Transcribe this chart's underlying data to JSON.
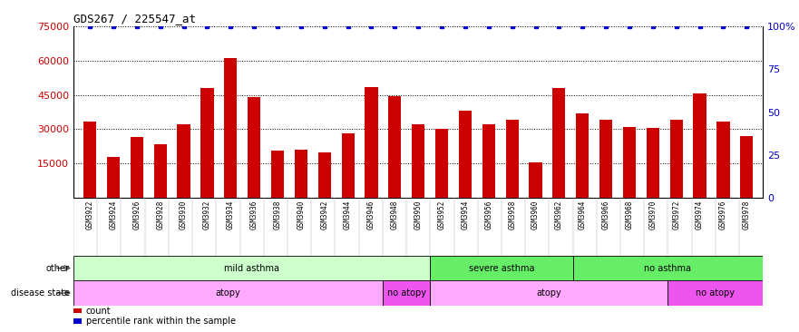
{
  "title": "GDS267 / 225547_at",
  "samples": [
    "GSM3922",
    "GSM3924",
    "GSM3926",
    "GSM3928",
    "GSM3930",
    "GSM3932",
    "GSM3934",
    "GSM3936",
    "GSM3938",
    "GSM3940",
    "GSM3942",
    "GSM3944",
    "GSM3946",
    "GSM3948",
    "GSM3950",
    "GSM3952",
    "GSM3954",
    "GSM3956",
    "GSM3958",
    "GSM3960",
    "GSM3962",
    "GSM3964",
    "GSM3966",
    "GSM3968",
    "GSM3970",
    "GSM3972",
    "GSM3974",
    "GSM3976",
    "GSM3978"
  ],
  "counts": [
    33500,
    18000,
    26500,
    23500,
    32000,
    48000,
    61000,
    44000,
    20500,
    21000,
    20000,
    28000,
    48500,
    44500,
    32000,
    30000,
    38000,
    32000,
    34000,
    15500,
    48000,
    37000,
    34000,
    31000,
    30500,
    34000,
    45500,
    33500,
    27000
  ],
  "percentile_ranks": [
    100,
    100,
    100,
    100,
    100,
    100,
    100,
    100,
    100,
    100,
    100,
    100,
    100,
    100,
    100,
    100,
    100,
    100,
    100,
    100,
    100,
    100,
    100,
    100,
    100,
    100,
    100,
    100,
    100
  ],
  "bar_color": "#cc0000",
  "dot_color": "#0000cc",
  "ylim_left": [
    0,
    75000
  ],
  "ylim_right": [
    0,
    100
  ],
  "yticks_left": [
    15000,
    30000,
    45000,
    60000,
    75000
  ],
  "yticks_right": [
    0,
    25,
    50,
    75,
    100
  ],
  "grid_y": [
    15000,
    30000,
    45000,
    60000,
    75000
  ],
  "other_segs": [
    {
      "text": "mild asthma",
      "start": 0,
      "end": 14,
      "color": "#ccffcc"
    },
    {
      "text": "severe asthma",
      "start": 15,
      "end": 20,
      "color": "#66ee66"
    },
    {
      "text": "no asthma",
      "start": 21,
      "end": 28,
      "color": "#66ee66"
    }
  ],
  "disease_segs": [
    {
      "text": "atopy",
      "start": 0,
      "end": 12,
      "color": "#ffaaff"
    },
    {
      "text": "no atopy",
      "start": 13,
      "end": 14,
      "color": "#ee55ee"
    },
    {
      "text": "atopy",
      "start": 15,
      "end": 24,
      "color": "#ffaaff"
    },
    {
      "text": "no atopy",
      "start": 25,
      "end": 28,
      "color": "#ee55ee"
    }
  ],
  "legend_items": [
    {
      "label": "count",
      "color": "#cc0000"
    },
    {
      "label": "percentile rank within the sample",
      "color": "#0000cc"
    }
  ],
  "tick_color_left": "#cc0000",
  "tick_color_right": "#0000cc",
  "xtick_bg_color": "#cccccc",
  "spine_color": "#000000"
}
